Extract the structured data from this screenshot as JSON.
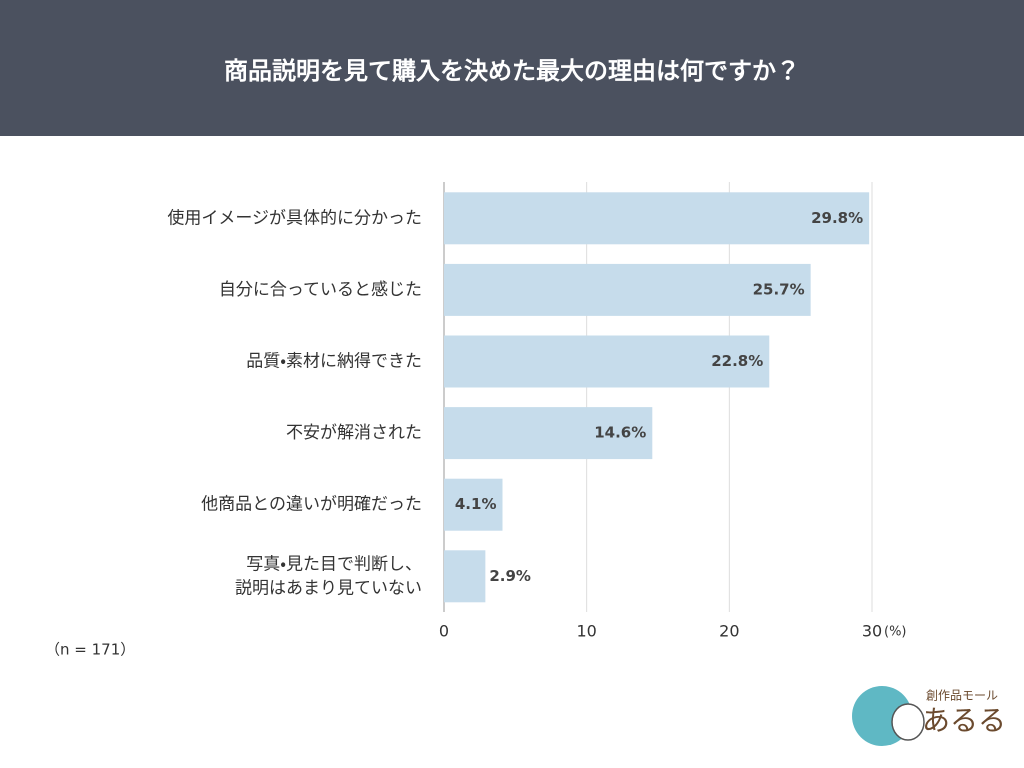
{
  "chart_data": {
    "type": "bar",
    "orientation": "horizontal",
    "title": "商品説明を見て購入を決めた最大の理由は何ですか？",
    "categories": [
      "使用イメージが具体的に分かった",
      "自分に合っていると感じた",
      "品質・素材に納得できた",
      "不安が解消された",
      "他商品との違いが明確だった",
      "写真・見た目で判断し、\n説明はあまり見ていない"
    ],
    "values": [
      29.8,
      25.7,
      22.8,
      14.6,
      4.1,
      2.9
    ],
    "value_labels": [
      "29.8%",
      "25.7%",
      "22.8%",
      "14.6%",
      "4.1%",
      "2.9%"
    ],
    "color": "#c6dceb",
    "xlim": [
      0,
      30
    ],
    "xticks": [
      0,
      10,
      20,
      30
    ],
    "x_label": "(%)",
    "grid": true,
    "note": "（n = 171）"
  },
  "logo": {
    "tagline": "創作品モール",
    "name": "あるる"
  }
}
